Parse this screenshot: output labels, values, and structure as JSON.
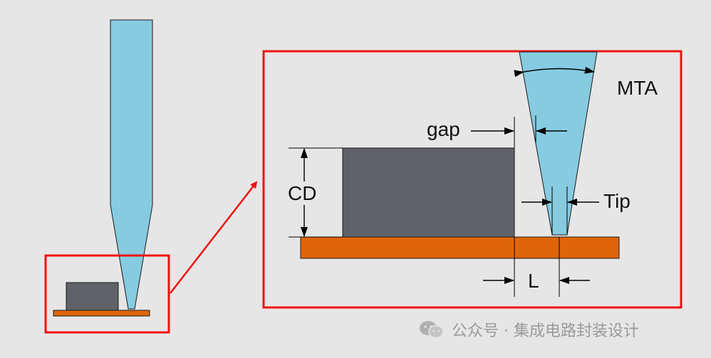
{
  "labels": {
    "gap": "gap",
    "cd": "CD",
    "tip": "Tip",
    "mta": "MTA",
    "l": "L"
  },
  "watermark": {
    "text": "公众号 · 集成电路封装设计",
    "icon": "wechat-icon"
  },
  "colors": {
    "background": "#e6e6e6",
    "tip_fill": "#86cbe0",
    "block_fill": "#5f6266",
    "substrate_fill": "#e0650a",
    "highlight_red": "#ee1111"
  }
}
